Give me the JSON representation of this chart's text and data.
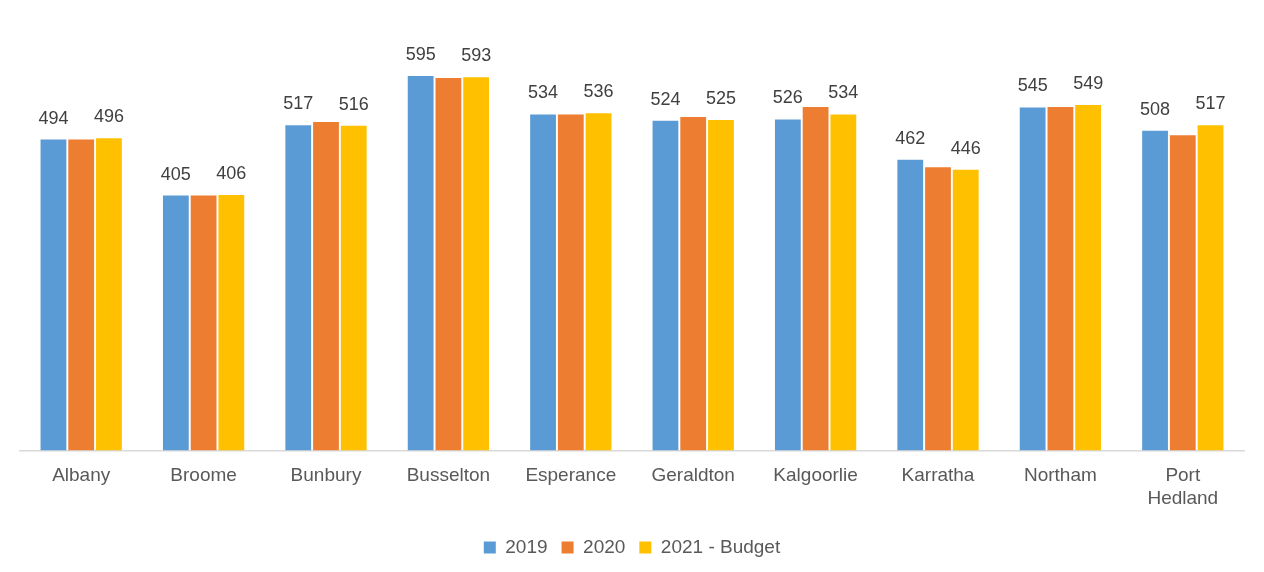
{
  "chart_data": {
    "type": "bar",
    "categories": [
      "Albany",
      "Broome",
      "Bunbury",
      "Busselton",
      "Esperance",
      "Geraldton",
      "Kalgoorlie",
      "Karratha",
      "Northam",
      "Port Hedland"
    ],
    "series": [
      {
        "name": "2019",
        "color": "#5b9bd5",
        "values": [
          494,
          405,
          517,
          595,
          534,
          524,
          526,
          462,
          545,
          508
        ],
        "value_labels": [
          "494",
          "405",
          "517",
          "595",
          "534",
          "524",
          "526",
          "462",
          "545",
          "508"
        ]
      },
      {
        "name": "2020",
        "color": "#ed7d31",
        "values": [
          494,
          405,
          522,
          592,
          534,
          530,
          546,
          450,
          546,
          501
        ]
      },
      {
        "name": "2021 - Budget",
        "color": "#ffc000",
        "values": [
          496,
          406,
          516,
          593,
          536,
          525,
          534,
          446,
          549,
          517
        ],
        "value_labels": [
          "496",
          "406",
          "516",
          "593",
          "536",
          "525",
          "534",
          "446",
          "549",
          "517"
        ]
      }
    ],
    "tick_labels": "x",
    "grid": false,
    "legend": "bottom"
  }
}
